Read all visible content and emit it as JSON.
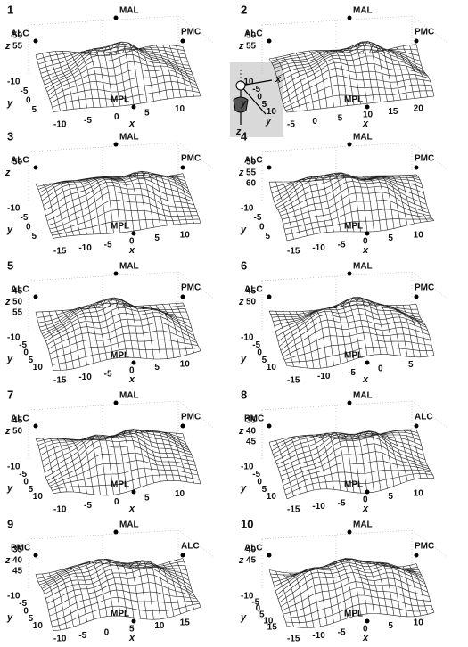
{
  "inset": {
    "axis_labels": [
      "x",
      "y",
      "z"
    ]
  },
  "panels": [
    {
      "number": "1",
      "landmarks": [
        "ALC",
        "MAL",
        "PMC",
        "MPL"
      ],
      "z_label": "z",
      "y_label": "y",
      "x_label": "x",
      "z_ticks": [
        "50",
        "55"
      ],
      "y_ticks": [
        "-10",
        "-5",
        "0",
        "5"
      ],
      "x_ticks": [
        "-10",
        "-5",
        "0",
        "5",
        "10"
      ]
    },
    {
      "number": "2",
      "landmarks": [
        "ALC",
        "MAL",
        "PMC",
        "MPL"
      ],
      "z_label": "z",
      "y_label": "y",
      "x_label": "x",
      "z_ticks": [
        "50",
        "55"
      ],
      "y_ticks": [
        "-10",
        "-5",
        "0",
        "5",
        "10"
      ],
      "x_ticks": [
        "-5",
        "0",
        "5",
        "10",
        "15",
        "20"
      ]
    },
    {
      "number": "3",
      "landmarks": [
        "ALC",
        "MAL",
        "PMC",
        "MPL"
      ],
      "z_label": "z",
      "y_label": "y",
      "x_label": "x",
      "z_ticks": [
        "50"
      ],
      "y_ticks": [
        "-10",
        "-5",
        "0",
        "5"
      ],
      "x_ticks": [
        "-15",
        "-10",
        "-5",
        "0",
        "5",
        "10"
      ]
    },
    {
      "number": "4",
      "landmarks": [
        "ALC",
        "MAL",
        "PMC",
        "MPL"
      ],
      "z_label": "z",
      "y_label": "y",
      "x_label": "x",
      "z_ticks": [
        "50",
        "55",
        "60"
      ],
      "y_ticks": [
        "-10",
        "-5",
        "0",
        "5"
      ],
      "x_ticks": [
        "-15",
        "-10",
        "-5",
        "0",
        "5",
        "10"
      ]
    },
    {
      "number": "5",
      "landmarks": [
        "ALC",
        "MAL",
        "PMC",
        "MPL"
      ],
      "z_label": "z",
      "y_label": "y",
      "x_label": "x",
      "z_ticks": [
        "45",
        "50",
        "55"
      ],
      "y_ticks": [
        "-10",
        "-5",
        "0",
        "5",
        "10"
      ],
      "x_ticks": [
        "-15",
        "-10",
        "-5",
        "0",
        "5",
        "10"
      ]
    },
    {
      "number": "6",
      "landmarks": [
        "ALC",
        "MAL",
        "PMC",
        "MPL"
      ],
      "z_label": "z",
      "y_label": "y",
      "x_label": "x",
      "z_ticks": [
        "45",
        "50"
      ],
      "y_ticks": [
        "-10",
        "-5",
        "0",
        "5",
        "10"
      ],
      "x_ticks": [
        "-15",
        "-10",
        "-5",
        "0",
        "5"
      ]
    },
    {
      "number": "7",
      "landmarks": [
        "ALC",
        "MAL",
        "PMC",
        "MPL"
      ],
      "z_label": "z",
      "y_label": "y",
      "x_label": "x",
      "z_ticks": [
        "45",
        "50"
      ],
      "y_ticks": [
        "-10",
        "-5",
        "0",
        "5",
        "10"
      ],
      "x_ticks": [
        "-10",
        "-5",
        "0",
        "5",
        "10"
      ]
    },
    {
      "number": "8",
      "landmarks": [
        "PMC",
        "MAL",
        "ALC",
        "MPL"
      ],
      "z_label": "z",
      "y_label": "y",
      "x_label": "x",
      "z_ticks": [
        "35",
        "40",
        "45"
      ],
      "y_ticks": [
        "-10",
        "-5",
        "0",
        "5",
        "10"
      ],
      "x_ticks": [
        "-15",
        "-10",
        "-5",
        "0",
        "5",
        "10"
      ]
    },
    {
      "number": "9",
      "landmarks": [
        "PMC",
        "MAL",
        "ALC",
        "MPL"
      ],
      "z_label": "z",
      "y_label": "y",
      "x_label": "x",
      "z_ticks": [
        "35",
        "40",
        "45"
      ],
      "y_ticks": [
        "-10",
        "-5",
        "0",
        "5",
        "10"
      ],
      "x_ticks": [
        "-10",
        "-5",
        "0",
        "5",
        "10",
        "15"
      ]
    },
    {
      "number": "10",
      "landmarks": [
        "ALC",
        "MAL",
        "PMC",
        "MPL"
      ],
      "z_label": "z",
      "y_label": "y",
      "x_label": "x",
      "z_ticks": [
        "40",
        "45"
      ],
      "y_ticks": [
        "-10",
        "-5",
        "0",
        "5",
        "10",
        "15"
      ],
      "x_ticks": [
        "-15",
        "-10",
        "-5",
        "0",
        "5",
        "10"
      ]
    }
  ]
}
